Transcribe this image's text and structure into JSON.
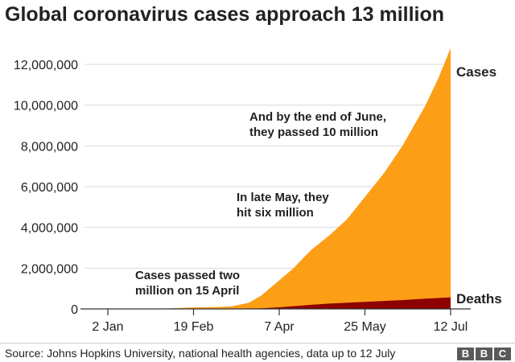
{
  "title": "Global coronavirus cases approach 13 million",
  "source": "Source: Johns Hopkins University, national health agencies, data up to 12 July",
  "logo": {
    "letters": [
      "B",
      "B",
      "C"
    ]
  },
  "colors": {
    "cases": "#fd9e17",
    "deaths": "#8d0101",
    "grid": "#d9d9d9",
    "axis": "#333333",
    "text": "#222222"
  },
  "chart_data": {
    "type": "area",
    "title": "Global coronavirus cases approach 13 million",
    "xlabel": "",
    "ylabel": "",
    "x_ticks": [
      "2 Jan",
      "19 Feb",
      "7 Apr",
      "25 May",
      "12 Jul"
    ],
    "y_ticks": [
      "0",
      "2,000,000",
      "4,000,000",
      "6,000,000",
      "8,000,000",
      "10,000,000",
      "12,000,000"
    ],
    "ylim": [
      0,
      13000000
    ],
    "xlim": [
      "2020-01-01",
      "2020-07-12"
    ],
    "grid": true,
    "series": [
      {
        "name": "Cases",
        "x": [
          "2020-01-02",
          "2020-01-22",
          "2020-02-01",
          "2020-02-19",
          "2020-03-01",
          "2020-03-11",
          "2020-03-21",
          "2020-03-28",
          "2020-04-07",
          "2020-04-15",
          "2020-04-25",
          "2020-05-05",
          "2020-05-15",
          "2020-05-25",
          "2020-06-05",
          "2020-06-15",
          "2020-06-28",
          "2020-07-05",
          "2020-07-12"
        ],
        "values": [
          0,
          500,
          12000,
          75000,
          88000,
          120000,
          300000,
          660000,
          1400000,
          2000000,
          2900000,
          3600000,
          4400000,
          5500000,
          6700000,
          8000000,
          10000000,
          11300000,
          12800000
        ]
      },
      {
        "name": "Deaths",
        "x": [
          "2020-01-02",
          "2020-02-19",
          "2020-03-11",
          "2020-03-28",
          "2020-04-07",
          "2020-04-15",
          "2020-04-25",
          "2020-05-05",
          "2020-05-25",
          "2020-06-15",
          "2020-06-28",
          "2020-07-12"
        ],
        "values": [
          0,
          2000,
          4300,
          30000,
          80000,
          135000,
          200000,
          260000,
          345000,
          435000,
          500000,
          570000
        ]
      }
    ],
    "series_labels": [
      {
        "text": "Cases",
        "series": "Cases"
      },
      {
        "text": "Deaths",
        "series": "Deaths"
      }
    ],
    "annotations": [
      {
        "lines": [
          "Cases passed two",
          "million on 15 April"
        ],
        "x": "2020-04-15",
        "value": 2000000
      },
      {
        "lines": [
          "In late May, they",
          "hit six million"
        ],
        "x": "2020-05-25",
        "value": 6000000
      },
      {
        "lines": [
          "And by the end of June,",
          "they passed 10 million"
        ],
        "x": "2020-06-28",
        "value": 10000000
      }
    ]
  }
}
